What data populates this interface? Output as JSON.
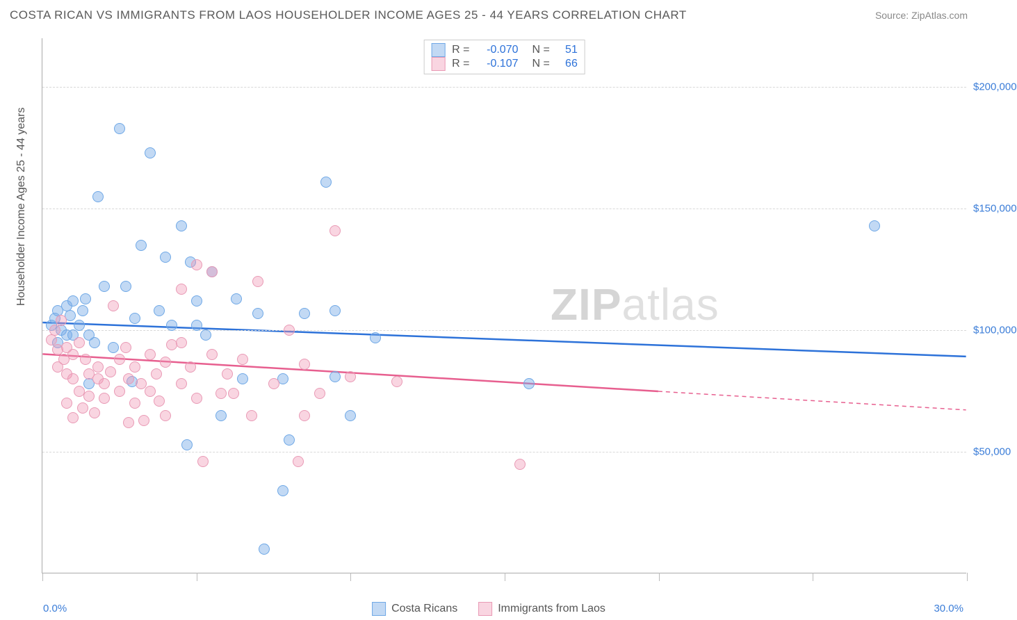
{
  "header": {
    "title": "COSTA RICAN VS IMMIGRANTS FROM LAOS HOUSEHOLDER INCOME AGES 25 - 44 YEARS CORRELATION CHART",
    "source_prefix": "Source: ",
    "source": "ZipAtlas.com"
  },
  "watermark": {
    "part1": "ZIP",
    "part2": "atlas"
  },
  "chart": {
    "type": "scatter",
    "y_axis_title": "Householder Income Ages 25 - 44 years",
    "xlim": [
      0,
      30
    ],
    "ylim": [
      0,
      220000
    ],
    "x_tick_step_pct": 5,
    "x_label_min": "0.0%",
    "x_label_max": "30.0%",
    "y_gridlines": [
      50000,
      100000,
      150000,
      200000
    ],
    "y_gridline_labels": [
      "$50,000",
      "$100,000",
      "$150,000",
      "$200,000"
    ],
    "grid_color": "#d8d8d8",
    "background_color": "#ffffff",
    "marker_radius": 8,
    "marker_stroke_width": 1.5,
    "trend_line_width": 2.5,
    "series": [
      {
        "id": "costa_ricans",
        "label": "Costa Ricans",
        "color_fill": "rgba(120,170,230,0.45)",
        "color_stroke": "#6fa8e6",
        "color_line": "#2d72d9",
        "R": "-0.070",
        "N": "51",
        "trend": {
          "x1": 0,
          "y1": 103000,
          "x2": 30,
          "y2": 89000,
          "solid_until_x": 30
        },
        "points": [
          {
            "x": 0.3,
            "y": 102000
          },
          {
            "x": 0.4,
            "y": 105000
          },
          {
            "x": 0.5,
            "y": 95000
          },
          {
            "x": 0.5,
            "y": 108000
          },
          {
            "x": 0.6,
            "y": 100000
          },
          {
            "x": 0.8,
            "y": 110000
          },
          {
            "x": 0.8,
            "y": 98000
          },
          {
            "x": 1.0,
            "y": 112000
          },
          {
            "x": 1.2,
            "y": 102000
          },
          {
            "x": 1.3,
            "y": 108000
          },
          {
            "x": 1.4,
            "y": 113000
          },
          {
            "x": 1.5,
            "y": 78000
          },
          {
            "x": 1.5,
            "y": 98000
          },
          {
            "x": 1.7,
            "y": 95000
          },
          {
            "x": 1.8,
            "y": 155000
          },
          {
            "x": 2.0,
            "y": 118000
          },
          {
            "x": 2.3,
            "y": 93000
          },
          {
            "x": 2.5,
            "y": 183000
          },
          {
            "x": 2.7,
            "y": 118000
          },
          {
            "x": 2.9,
            "y": 79000
          },
          {
            "x": 3.0,
            "y": 105000
          },
          {
            "x": 3.2,
            "y": 135000
          },
          {
            "x": 3.5,
            "y": 173000
          },
          {
            "x": 3.8,
            "y": 108000
          },
          {
            "x": 4.0,
            "y": 130000
          },
          {
            "x": 4.2,
            "y": 102000
          },
          {
            "x": 4.5,
            "y": 143000
          },
          {
            "x": 4.7,
            "y": 53000
          },
          {
            "x": 4.8,
            "y": 128000
          },
          {
            "x": 5.0,
            "y": 102000
          },
          {
            "x": 5.0,
            "y": 112000
          },
          {
            "x": 5.3,
            "y": 98000
          },
          {
            "x": 5.5,
            "y": 124000
          },
          {
            "x": 5.8,
            "y": 65000
          },
          {
            "x": 6.3,
            "y": 113000
          },
          {
            "x": 6.5,
            "y": 80000
          },
          {
            "x": 7.0,
            "y": 107000
          },
          {
            "x": 7.2,
            "y": 10000
          },
          {
            "x": 7.8,
            "y": 34000
          },
          {
            "x": 7.8,
            "y": 80000
          },
          {
            "x": 8.0,
            "y": 55000
          },
          {
            "x": 8.5,
            "y": 107000
          },
          {
            "x": 9.2,
            "y": 161000
          },
          {
            "x": 9.5,
            "y": 81000
          },
          {
            "x": 9.5,
            "y": 108000
          },
          {
            "x": 10.0,
            "y": 65000
          },
          {
            "x": 10.8,
            "y": 97000
          },
          {
            "x": 15.8,
            "y": 78000
          },
          {
            "x": 27.0,
            "y": 143000
          },
          {
            "x": 1.0,
            "y": 98000
          },
          {
            "x": 0.9,
            "y": 106000
          }
        ]
      },
      {
        "id": "laos",
        "label": "Immigrants from Laos",
        "color_fill": "rgba(240,150,180,0.40)",
        "color_stroke": "#e99ab5",
        "color_line": "#e75f8f",
        "R": "-0.107",
        "N": "66",
        "trend": {
          "x1": 0,
          "y1": 90000,
          "x2": 30,
          "y2": 67000,
          "solid_until_x": 20
        },
        "points": [
          {
            "x": 0.3,
            "y": 96000
          },
          {
            "x": 0.4,
            "y": 100000
          },
          {
            "x": 0.5,
            "y": 92000
          },
          {
            "x": 0.5,
            "y": 85000
          },
          {
            "x": 0.6,
            "y": 104000
          },
          {
            "x": 0.7,
            "y": 88000
          },
          {
            "x": 0.8,
            "y": 82000
          },
          {
            "x": 0.8,
            "y": 93000
          },
          {
            "x": 0.8,
            "y": 70000
          },
          {
            "x": 1.0,
            "y": 80000
          },
          {
            "x": 1.0,
            "y": 90000
          },
          {
            "x": 1.2,
            "y": 75000
          },
          {
            "x": 1.2,
            "y": 95000
          },
          {
            "x": 1.3,
            "y": 68000
          },
          {
            "x": 1.4,
            "y": 88000
          },
          {
            "x": 1.5,
            "y": 82000
          },
          {
            "x": 1.5,
            "y": 73000
          },
          {
            "x": 1.7,
            "y": 66000
          },
          {
            "x": 1.8,
            "y": 85000
          },
          {
            "x": 1.8,
            "y": 80000
          },
          {
            "x": 2.0,
            "y": 78000
          },
          {
            "x": 2.0,
            "y": 72000
          },
          {
            "x": 2.2,
            "y": 83000
          },
          {
            "x": 2.3,
            "y": 110000
          },
          {
            "x": 2.5,
            "y": 75000
          },
          {
            "x": 2.5,
            "y": 88000
          },
          {
            "x": 2.7,
            "y": 93000
          },
          {
            "x": 2.8,
            "y": 80000
          },
          {
            "x": 2.8,
            "y": 62000
          },
          {
            "x": 3.0,
            "y": 70000
          },
          {
            "x": 3.0,
            "y": 85000
          },
          {
            "x": 3.2,
            "y": 78000
          },
          {
            "x": 3.3,
            "y": 63000
          },
          {
            "x": 3.5,
            "y": 90000
          },
          {
            "x": 3.5,
            "y": 75000
          },
          {
            "x": 3.7,
            "y": 82000
          },
          {
            "x": 3.8,
            "y": 71000
          },
          {
            "x": 4.0,
            "y": 87000
          },
          {
            "x": 4.0,
            "y": 65000
          },
          {
            "x": 4.2,
            "y": 94000
          },
          {
            "x": 4.5,
            "y": 78000
          },
          {
            "x": 4.5,
            "y": 117000
          },
          {
            "x": 4.8,
            "y": 85000
          },
          {
            "x": 5.0,
            "y": 72000
          },
          {
            "x": 5.0,
            "y": 127000
          },
          {
            "x": 5.2,
            "y": 46000
          },
          {
            "x": 5.5,
            "y": 90000
          },
          {
            "x": 5.5,
            "y": 124000
          },
          {
            "x": 5.8,
            "y": 74000
          },
          {
            "x": 6.0,
            "y": 82000
          },
          {
            "x": 6.2,
            "y": 74000
          },
          {
            "x": 6.5,
            "y": 88000
          },
          {
            "x": 6.8,
            "y": 65000
          },
          {
            "x": 7.0,
            "y": 120000
          },
          {
            "x": 7.5,
            "y": 78000
          },
          {
            "x": 8.0,
            "y": 100000
          },
          {
            "x": 8.3,
            "y": 46000
          },
          {
            "x": 8.5,
            "y": 86000
          },
          {
            "x": 8.5,
            "y": 65000
          },
          {
            "x": 9.0,
            "y": 74000
          },
          {
            "x": 9.5,
            "y": 141000
          },
          {
            "x": 10.0,
            "y": 81000
          },
          {
            "x": 11.5,
            "y": 79000
          },
          {
            "x": 15.5,
            "y": 45000
          },
          {
            "x": 1.0,
            "y": 64000
          },
          {
            "x": 4.5,
            "y": 95000
          }
        ]
      }
    ],
    "legend_top": {
      "R_label": "R =",
      "N_label": "N ="
    },
    "value_color": "#2d72d9"
  }
}
